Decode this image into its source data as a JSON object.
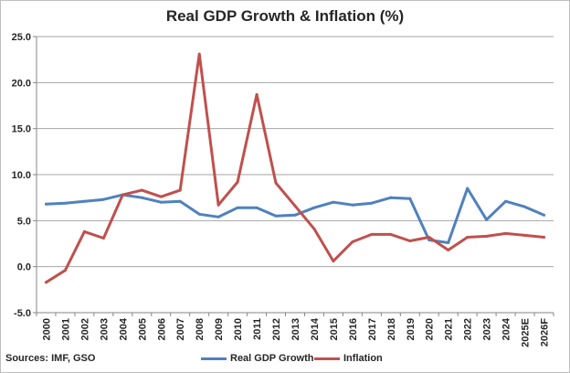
{
  "chart_data": {
    "type": "line",
    "title": "Real GDP Growth & Inflation (%)",
    "source": "Sources: IMF, GSO",
    "x": [
      "2000",
      "2001",
      "2002",
      "2003",
      "2004",
      "2005",
      "2006",
      "2007",
      "2008",
      "2009",
      "2010",
      "2011",
      "2012",
      "2013",
      "2014",
      "2015",
      "2016",
      "2017",
      "2018",
      "2019",
      "2020",
      "2021",
      "2022",
      "2023",
      "2024",
      "2025E",
      "2026F"
    ],
    "ylim": [
      -5,
      25
    ],
    "yticks": [
      -5,
      0,
      5,
      10,
      15,
      20,
      25
    ],
    "ytick_labels": [
      "-5.0",
      "0.0",
      "5.0",
      "10.0",
      "15.0",
      "20.0",
      "25.0"
    ],
    "grid": true,
    "legend": "bottom",
    "series": [
      {
        "name": "Real GDP Growth",
        "color": "#4f81bd",
        "values": [
          6.8,
          6.9,
          7.1,
          7.3,
          7.8,
          7.5,
          7.0,
          7.1,
          5.7,
          5.4,
          6.4,
          6.4,
          5.5,
          5.6,
          6.4,
          7.0,
          6.7,
          6.9,
          7.5,
          7.4,
          2.9,
          2.6,
          8.5,
          5.1,
          7.1,
          6.5,
          5.6
        ]
      },
      {
        "name": "Inflation",
        "color": "#c0504d",
        "values": [
          -1.7,
          -0.4,
          3.8,
          3.1,
          7.8,
          8.3,
          7.6,
          8.3,
          23.1,
          6.7,
          9.2,
          18.7,
          9.1,
          6.6,
          4.1,
          0.6,
          2.7,
          3.5,
          3.5,
          2.8,
          3.2,
          1.8,
          3.2,
          3.3,
          3.6,
          3.4,
          3.2
        ]
      }
    ]
  }
}
